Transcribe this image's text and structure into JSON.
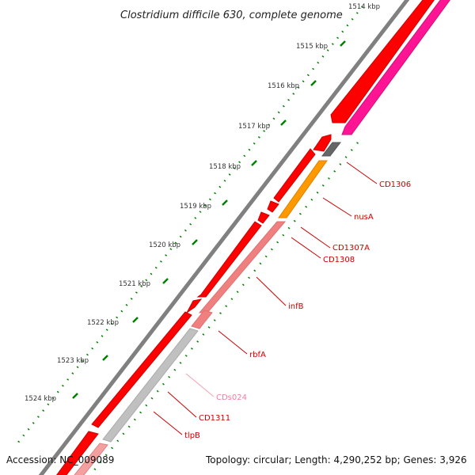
{
  "title": "Clostridium difficile 630, complete genome",
  "ticks": [
    "1514 kbp",
    "1515 kbp",
    "1516 kbp",
    "1517 kbp",
    "1518 kbp",
    "1519 kbp",
    "1520 kbp",
    "1521 kbp",
    "1522 kbp",
    "1523 kbp",
    "1524 kbp"
  ],
  "genes": [
    {
      "name": "CD1306",
      "color": "#cc0000"
    },
    {
      "name": "nusA",
      "color": "#cc0000"
    },
    {
      "name": "CD1307A",
      "color": "#cc0000"
    },
    {
      "name": "CD1308",
      "color": "#cc0000"
    },
    {
      "name": "infB",
      "color": "#cc0000"
    },
    {
      "name": "rbfA",
      "color": "#cc0000"
    },
    {
      "name": "CDs024",
      "color": "#f080a0"
    },
    {
      "name": "CD1311",
      "color": "#cc0000"
    },
    {
      "name": "tlpB",
      "color": "#cc0000"
    }
  ],
  "footer": {
    "accession": "Accession: NC_009089",
    "topology": "Topology: circular; Length: 4,290,252 bp; Genes: 3,926"
  },
  "colors": {
    "backbone": "#808080",
    "forward_gene": "#ff0000",
    "reverse_gene": "#f08080",
    "rna_gene": "#ff1493",
    "orange_gene": "#ff9900",
    "gray_gene": "#c0c0c0",
    "tick": "#008000"
  }
}
